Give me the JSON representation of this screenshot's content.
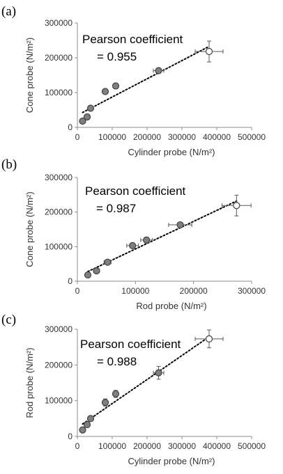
{
  "chart_data": [
    {
      "type": "scatter",
      "panel_label": "(a)",
      "xlabel": "Cylinder probe  (N/m²)",
      "ylabel": "Cone probe (N/m²)",
      "xlim": [
        0,
        500000
      ],
      "ylim": [
        0,
        300000
      ],
      "xticks": [
        0,
        100000,
        200000,
        300000,
        400000,
        500000
      ],
      "yticks": [
        0,
        100000,
        200000,
        300000
      ],
      "xtick_labels": [
        "0",
        "100000",
        "200000",
        "300000",
        "400000",
        "500000"
      ],
      "ytick_labels": [
        "0",
        "100000",
        "200000",
        "300000"
      ],
      "annotation_line1": "Pearson coefficient",
      "annotation_line2": "= 0.955",
      "trendline": "dotted",
      "points": [
        {
          "x": 15000,
          "y": 18000,
          "xerr": 4000,
          "yerr": 5000
        },
        {
          "x": 28000,
          "y": 30000,
          "xerr": 5000,
          "yerr": 5000
        },
        {
          "x": 38000,
          "y": 55000,
          "xerr": 5000,
          "yerr": 5000
        },
        {
          "x": 80000,
          "y": 103000,
          "xerr": 6000,
          "yerr": 6000
        },
        {
          "x": 110000,
          "y": 119000,
          "xerr": 6000,
          "yerr": 8000
        },
        {
          "x": 233000,
          "y": 163000,
          "xerr": 15000,
          "yerr": 7000
        },
        {
          "x": 378000,
          "y": 218000,
          "xerr": 40000,
          "yerr": 30000
        }
      ]
    },
    {
      "type": "scatter",
      "panel_label": "(b)",
      "xlabel": "Rod probe  (N/m²)",
      "ylabel": "Cone probe (N/m²)",
      "xlim": [
        0,
        300000
      ],
      "ylim": [
        0,
        300000
      ],
      "xticks": [
        0,
        100000,
        200000,
        300000
      ],
      "yticks": [
        0,
        100000,
        200000,
        300000
      ],
      "xtick_labels": [
        "0",
        "100000",
        "200000",
        "300000"
      ],
      "ytick_labels": [
        "0",
        "100000",
        "200000",
        "300000"
      ],
      "annotation_line1": "Pearson coefficient",
      "annotation_line2": "= 0.987",
      "trendline": "dotted",
      "points": [
        {
          "x": 18000,
          "y": 18000,
          "xerr": 4000,
          "yerr": 5000
        },
        {
          "x": 33000,
          "y": 30000,
          "xerr": 5000,
          "yerr": 5000
        },
        {
          "x": 52000,
          "y": 55000,
          "xerr": 6000,
          "yerr": 5000
        },
        {
          "x": 95000,
          "y": 103000,
          "xerr": 10000,
          "yerr": 6000
        },
        {
          "x": 119000,
          "y": 119000,
          "xerr": 10000,
          "yerr": 8000
        },
        {
          "x": 177000,
          "y": 163000,
          "xerr": 20000,
          "yerr": 7000
        },
        {
          "x": 274000,
          "y": 219000,
          "xerr": 25000,
          "yerr": 30000
        }
      ]
    },
    {
      "type": "scatter",
      "panel_label": "(c)",
      "xlabel": "Cylinder probe  (N/m²)",
      "ylabel": "Rod probe (N/m²)",
      "xlim": [
        0,
        500000
      ],
      "ylim": [
        0,
        300000
      ],
      "xticks": [
        0,
        100000,
        200000,
        300000,
        400000,
        500000
      ],
      "yticks": [
        0,
        100000,
        200000,
        300000
      ],
      "xtick_labels": [
        "0",
        "100000",
        "200000",
        "300000",
        "400000",
        "500000"
      ],
      "ytick_labels": [
        "0",
        "100000",
        "200000",
        "300000"
      ],
      "annotation_line1": "Pearson coefficient",
      "annotation_line2": "= 0.988",
      "trendline": "dotted",
      "points": [
        {
          "x": 15000,
          "y": 18000,
          "xerr": 4000,
          "yerr": 5000
        },
        {
          "x": 28000,
          "y": 33000,
          "xerr": 5000,
          "yerr": 5000
        },
        {
          "x": 38000,
          "y": 50000,
          "xerr": 5000,
          "yerr": 6000
        },
        {
          "x": 80000,
          "y": 95000,
          "xerr": 6000,
          "yerr": 10000
        },
        {
          "x": 110000,
          "y": 119000,
          "xerr": 6000,
          "yerr": 10000
        },
        {
          "x": 233000,
          "y": 178000,
          "xerr": 15000,
          "yerr": 18000
        },
        {
          "x": 378000,
          "y": 273000,
          "xerr": 40000,
          "yerr": 25000
        }
      ]
    }
  ],
  "colors": {
    "marker_fill": "#7f7f7f",
    "marker_edge": "#404040",
    "hollow_fill": "#ffffff",
    "axis": "#8c8c8c",
    "errorbar": "#595959",
    "trendline": "#000000",
    "text": "#000000"
  }
}
